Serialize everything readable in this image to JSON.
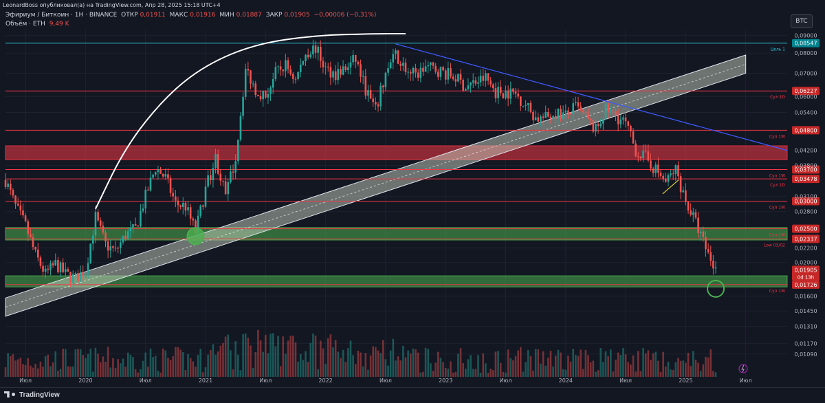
{
  "header": {
    "published_by": "LeonardBoss опубликовал(а) на TradingView.com, Апр 28, 2025 15:18 UTC+4",
    "symbol": "Эфириум / Биткоин · 1Н · BINANCE",
    "open_label": "ОТКР",
    "open_value": "0,01911",
    "high_label": "МАКС",
    "high_value": "0,01916",
    "low_label": "МИН",
    "low_value": "0,01887",
    "close_label": "ЗАКР",
    "close_value": "0,01905",
    "change": "−0,00006 (−0,31%)",
    "volume_label": "Объём · ETH",
    "volume_value": "9,49 K",
    "currency_badge": "BTC"
  },
  "footer": {
    "brand": "TradingView"
  },
  "colors": {
    "background": "#131722",
    "bull": "#26a69a",
    "bear": "#ef5350",
    "resistance_line": "#f23645",
    "target_line": "#26c6da",
    "trendline": "#3d5afe",
    "channel": "#c8d0c0",
    "support_zone": "#4caf50",
    "resistance_zone": "#f23645"
  },
  "chart_data": {
    "type": "candlestick",
    "y_scale": "log",
    "ylim": [
      0.0095,
      0.0935
    ],
    "y_ticks": [
      "0,09000",
      "0,08000",
      "0,07000",
      "0,06000",
      "0,05400",
      "0,04200",
      "0,03800",
      "0,03100",
      "0,02800",
      "0,02200",
      "0,02000",
      "0,01600",
      "0,01450",
      "0,01310",
      "0,01170",
      "0,01090"
    ],
    "x_ticks": [
      "Июл",
      "2020",
      "Июл",
      "2021",
      "Июл",
      "2022",
      "Июл",
      "2023",
      "Июл",
      "2024",
      "Июл",
      "2025",
      "Июл"
    ],
    "levels": [
      {
        "price": 0.08547,
        "label": "0,08547",
        "tag": "Цель 1",
        "kind": "target"
      },
      {
        "price": 0.06227,
        "label": "0,06227",
        "tag": "Сул 1D",
        "kind": "resistance"
      },
      {
        "price": 0.048,
        "label": "0,04800",
        "tag": "Сул 1W",
        "kind": "resistance"
      },
      {
        "price": 0.037,
        "label": "0,03700",
        "tag": "Сул 1W",
        "kind": "resistance"
      },
      {
        "price": 0.03478,
        "label": "0,03478",
        "tag": "Сул 1D",
        "kind": "resistance"
      },
      {
        "price": 0.03,
        "label": "0,03000",
        "tag": "Сул 1W",
        "kind": "resistance"
      },
      {
        "price": 0.025,
        "label": "0,02500",
        "tag": "Сул 1W",
        "kind": "support"
      },
      {
        "price": 0.02337,
        "label": "0,02337",
        "tag": "Low 03/02",
        "kind": "support"
      },
      {
        "price": 0.01726,
        "label": "0,01726",
        "tag": "Сул 1W",
        "kind": "support"
      }
    ],
    "current_price": {
      "label": "0,01905",
      "countdown": "0d 13h"
    },
    "zones": [
      {
        "from": 0.0395,
        "to": 0.0433,
        "kind": "resistance"
      },
      {
        "from": 0.0232,
        "to": 0.0252,
        "kind": "support"
      },
      {
        "from": 0.017,
        "to": 0.0183,
        "kind": "support"
      }
    ],
    "trend_path": [
      [
        "2019-05",
        0.0345
      ],
      [
        "2019-06",
        0.029
      ],
      [
        "2019-07",
        0.0255
      ],
      [
        "2019-08",
        0.021
      ],
      [
        "2019-09",
        0.0185
      ],
      [
        "2019-10",
        0.0198
      ],
      [
        "2019-11",
        0.0185
      ],
      [
        "2019-12",
        0.018
      ],
      [
        "2020-01",
        0.019
      ],
      [
        "2020-02",
        0.027
      ],
      [
        "2020-03",
        0.0225
      ],
      [
        "2020-04",
        0.0215
      ],
      [
        "2020-05",
        0.024
      ],
      [
        "2020-06",
        0.025
      ],
      [
        "2020-07",
        0.031
      ],
      [
        "2020-08",
        0.0375
      ],
      [
        "2020-09",
        0.035
      ],
      [
        "2020-10",
        0.0295
      ],
      [
        "2020-11",
        0.029
      ],
      [
        "2020-12",
        0.0245
      ],
      [
        "2021-01",
        0.0325
      ],
      [
        "2021-02",
        0.04
      ],
      [
        "2021-03",
        0.031
      ],
      [
        "2021-04",
        0.04
      ],
      [
        "2021-05",
        0.072
      ],
      [
        "2021-06",
        0.063
      ],
      [
        "2021-07",
        0.06
      ],
      [
        "2021-08",
        0.07
      ],
      [
        "2021-09",
        0.074
      ],
      [
        "2021-10",
        0.067
      ],
      [
        "2021-11",
        0.08
      ],
      [
        "2021-12",
        0.083
      ],
      [
        "2022-01",
        0.072
      ],
      [
        "2022-02",
        0.07
      ],
      [
        "2022-03",
        0.072
      ],
      [
        "2022-04",
        0.077
      ],
      [
        "2022-05",
        0.063
      ],
      [
        "2022-06",
        0.0545
      ],
      [
        "2022-07",
        0.07
      ],
      [
        "2022-08",
        0.079
      ],
      [
        "2022-09",
        0.072
      ],
      [
        "2022-10",
        0.069
      ],
      [
        "2022-11",
        0.073
      ],
      [
        "2022-12",
        0.072
      ],
      [
        "2023-01",
        0.07
      ],
      [
        "2023-02",
        0.068
      ],
      [
        "2023-03",
        0.064
      ],
      [
        "2023-04",
        0.066
      ],
      [
        "2023-05",
        0.068
      ],
      [
        "2023-06",
        0.062
      ],
      [
        "2023-07",
        0.062
      ],
      [
        "2023-08",
        0.061
      ],
      [
        "2023-09",
        0.057
      ],
      [
        "2023-10",
        0.052
      ],
      [
        "2023-11",
        0.052
      ],
      [
        "2023-12",
        0.054
      ],
      [
        "2024-01",
        0.053
      ],
      [
        "2024-02",
        0.056
      ],
      [
        "2024-03",
        0.052
      ],
      [
        "2024-04",
        0.048
      ],
      [
        "2024-05",
        0.055
      ],
      [
        "2024-06",
        0.053
      ],
      [
        "2024-07",
        0.05
      ],
      [
        "2024-08",
        0.042
      ],
      [
        "2024-09",
        0.04
      ],
      [
        "2024-10",
        0.037
      ],
      [
        "2024-11",
        0.034
      ],
      [
        "2024-12",
        0.037
      ],
      [
        "2025-01",
        0.03
      ],
      [
        "2025-02",
        0.026
      ],
      [
        "2025-03",
        0.022
      ],
      [
        "2025-04",
        0.019
      ]
    ],
    "channel": {
      "start": [
        "2019-05",
        0.014,
        0.0158
      ],
      "end": [
        "2025-07",
        0.07,
        0.079
      ]
    },
    "trendline": {
      "start": [
        "2022-08",
        0.085
      ],
      "end": [
        "2025-07",
        0.042
      ]
    },
    "arc": [
      [
        "2020-02",
        0.0285
      ],
      [
        "2020-05",
        0.043
      ],
      [
        "2020-09",
        0.06
      ],
      [
        "2021-01",
        0.074
      ],
      [
        "2021-06",
        0.085
      ],
      [
        "2021-12",
        0.09
      ],
      [
        "2022-06",
        0.091
      ],
      [
        "2022-09",
        0.091
      ]
    ],
    "circles": [
      {
        "date": "2020-12",
        "price": 0.0238
      },
      {
        "date": "2025-04",
        "price": 0.0168
      }
    ]
  }
}
